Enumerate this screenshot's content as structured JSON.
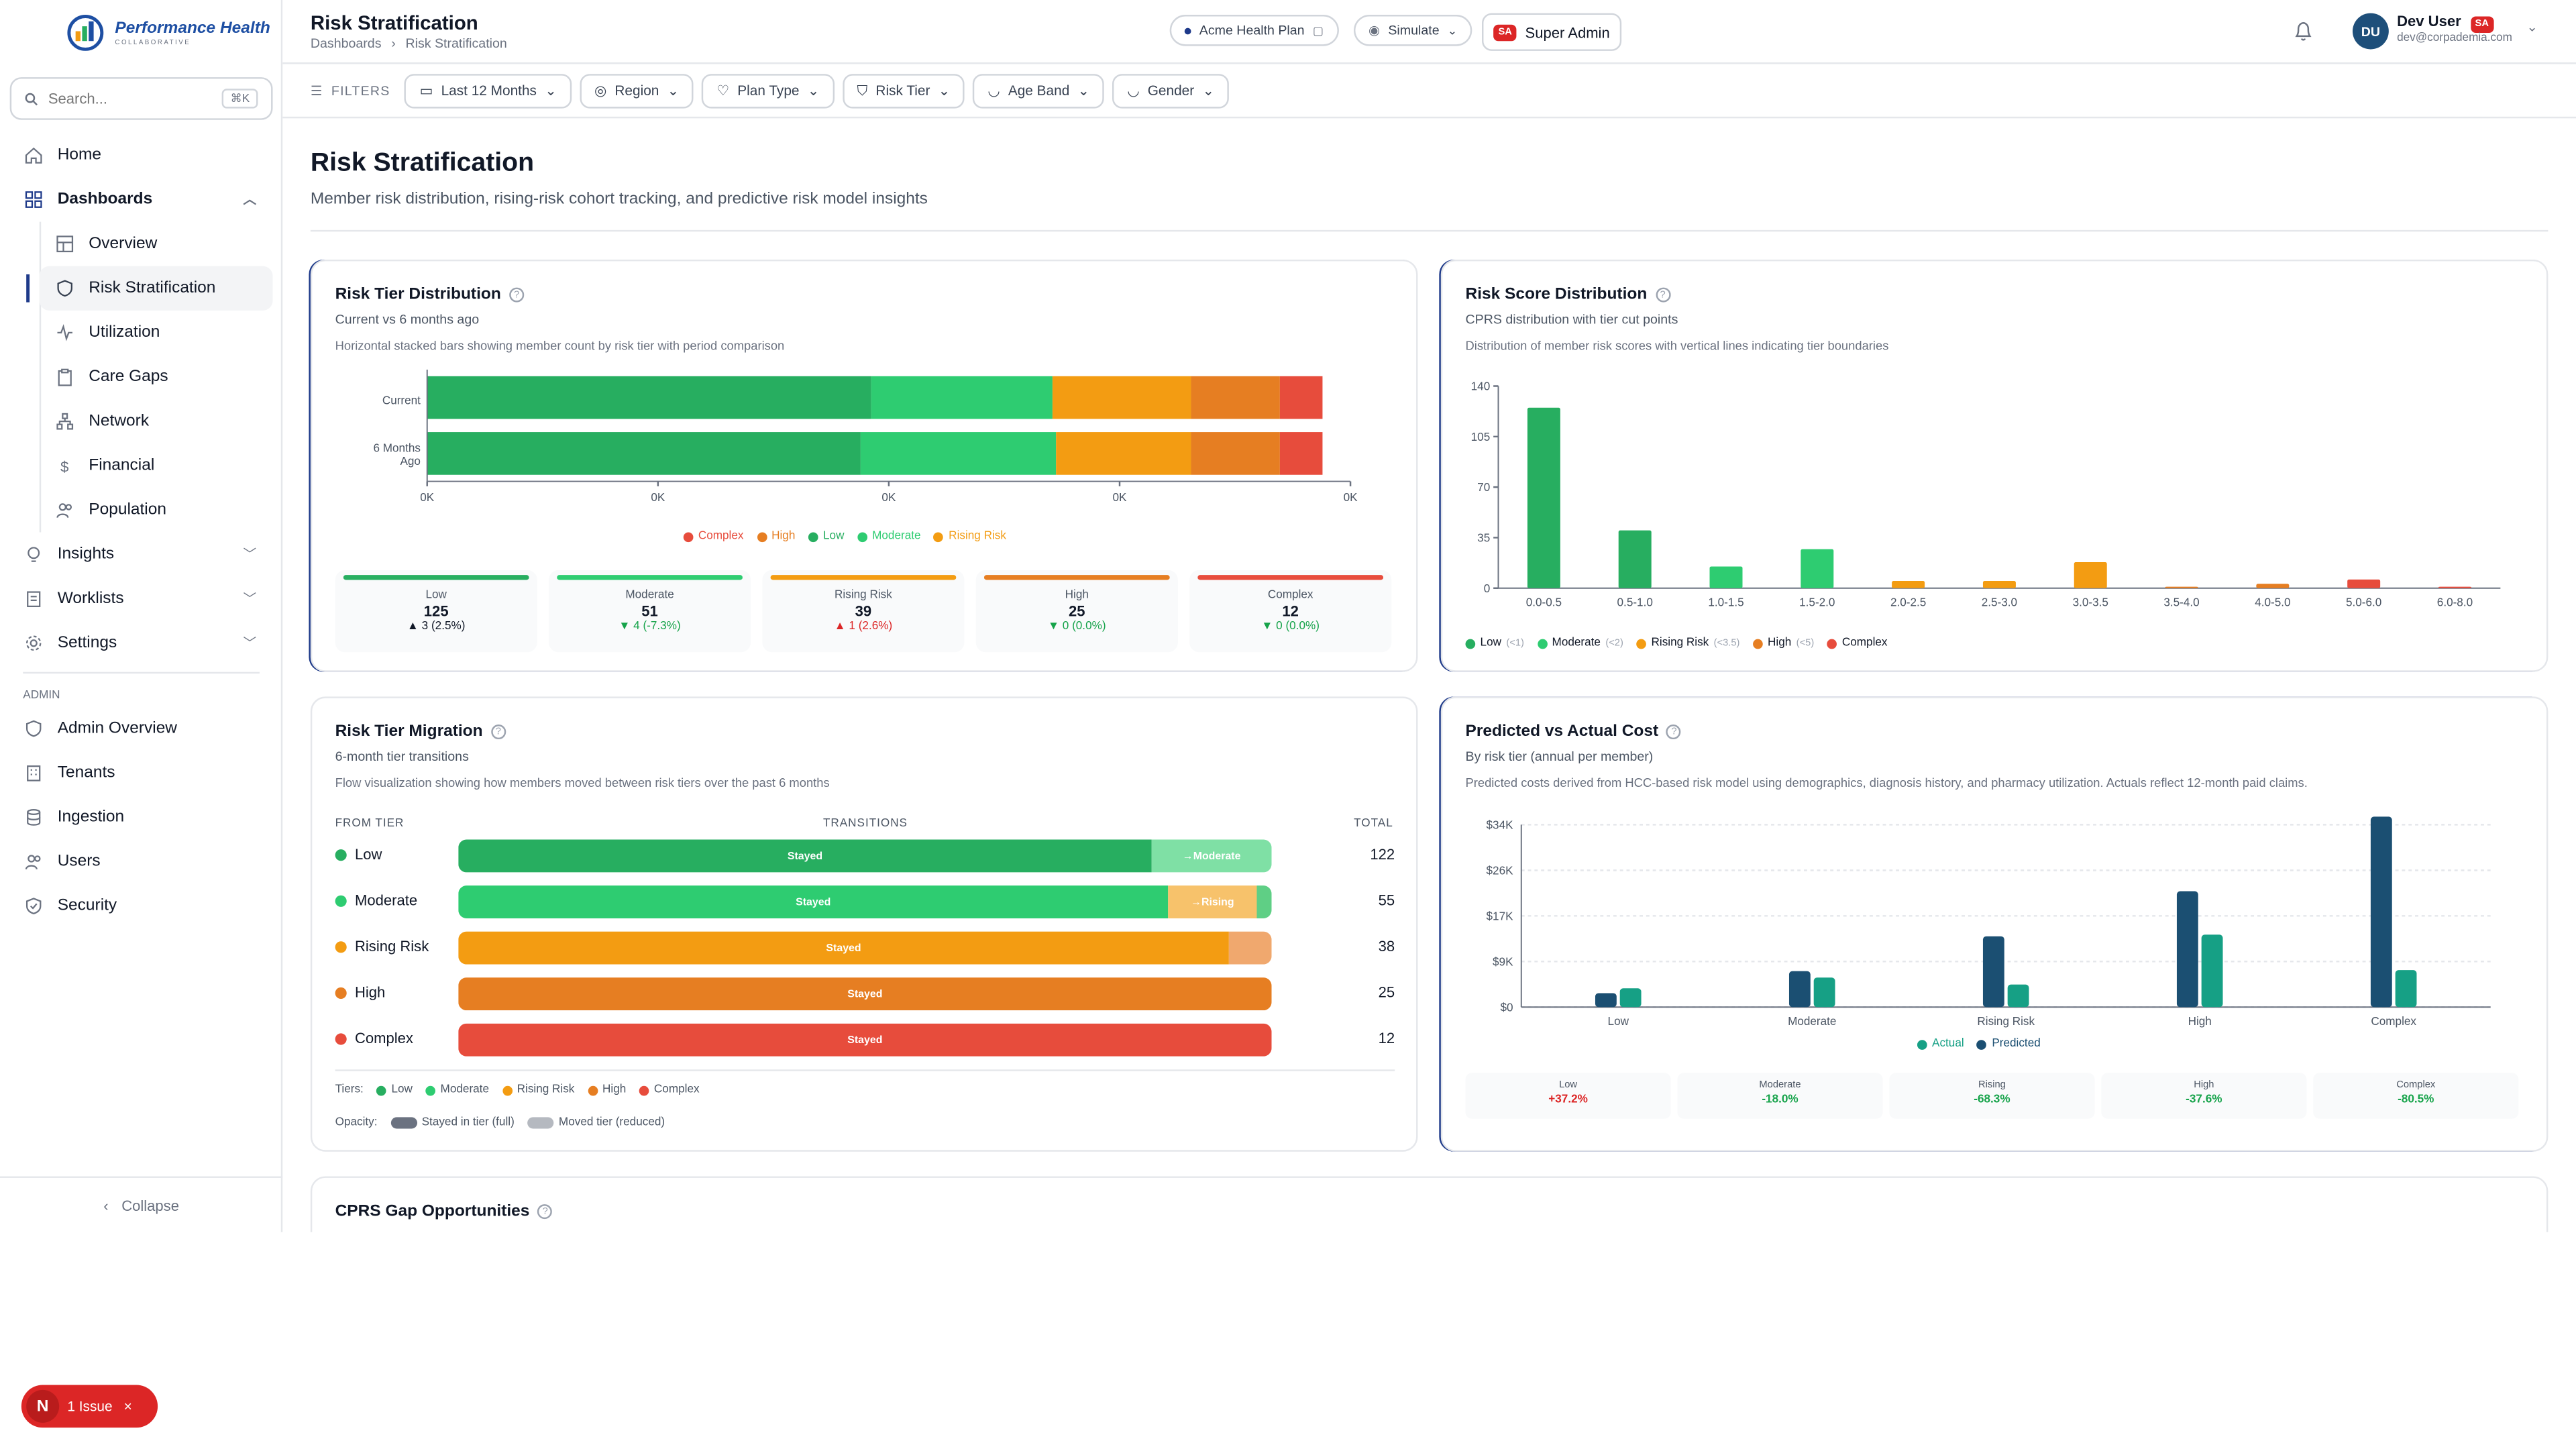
{
  "brand": {
    "name": "Performance Health",
    "sub": "COLLABORATIVE"
  },
  "search": {
    "placeholder": "Search...",
    "shortcut": "⌘K"
  },
  "nav": {
    "home": "Home",
    "dashboards": "Dashboards",
    "dash_items": [
      "Overview",
      "Risk Stratification",
      "Utilization",
      "Care Gaps",
      "Network",
      "Financial",
      "Population"
    ],
    "insights": "Insights",
    "worklists": "Worklists",
    "settings": "Settings",
    "admin_label": "ADMIN",
    "admin_items": [
      "Admin Overview",
      "Tenants",
      "Ingestion",
      "Users",
      "Security"
    ],
    "collapse": "Collapse"
  },
  "topbar": {
    "title": "Risk Stratification",
    "crumb_1": "Dashboards",
    "crumb_2": "Risk Stratification",
    "plan": "Acme Health Plan",
    "simulate": "Simulate",
    "role_badge": "SA",
    "role": "Super Admin",
    "avatar": "DU",
    "user_name": "Dev User",
    "user_badge": "SA",
    "user_email": "dev@corpademia.com"
  },
  "filters": {
    "label": "FILTERS",
    "items": [
      "Last 12 Months",
      "Region",
      "Plan Type",
      "Risk Tier",
      "Age Band",
      "Gender"
    ]
  },
  "page": {
    "title": "Risk Stratification",
    "subtitle": "Member risk distribution, rising-risk cohort tracking, and predictive risk model insights"
  },
  "colors": {
    "low": "#27ae60",
    "moderate": "#2ecc71",
    "rising": "#f39c12",
    "high": "#e67e22",
    "complex": "#e74c3c",
    "actual": "#1b4f72",
    "predicted": "#16a085"
  },
  "tier_dist": {
    "title": "Risk Tier Distribution",
    "subtitle": "Current vs 6 months ago",
    "desc": "Horizontal stacked bars showing member count by risk tier with period comparison",
    "legend": [
      "Complex",
      "High",
      "Low",
      "Moderate",
      "Rising Risk"
    ],
    "stats": [
      {
        "label": "Low",
        "value": "125",
        "change": "▲ 3 (2.5%)"
      },
      {
        "label": "Moderate",
        "value": "51",
        "change": "▼ 4 (-7.3%)"
      },
      {
        "label": "Rising Risk",
        "value": "39",
        "change": "▲ 1 (2.6%)"
      },
      {
        "label": "High",
        "value": "25",
        "change": "▼ 0 (0.0%)"
      },
      {
        "label": "Complex",
        "value": "12",
        "change": "▼ 0 (0.0%)"
      }
    ]
  },
  "score_dist": {
    "title": "Risk Score Distribution",
    "subtitle": "CPRS distribution with tier cut points",
    "desc": "Distribution of member risk scores with vertical lines indicating tier boundaries",
    "legend": [
      {
        "name": "Low",
        "note": "(<1)"
      },
      {
        "name": "Moderate",
        "note": "(<2)"
      },
      {
        "name": "Rising Risk",
        "note": "(<3.5)"
      },
      {
        "name": "High",
        "note": "(<5)"
      },
      {
        "name": "Complex",
        "note": ""
      }
    ]
  },
  "migration": {
    "title": "Risk Tier Migration",
    "subtitle": "6-month tier transitions",
    "desc": "Flow visualization showing how members moved between risk tiers over the past 6 months",
    "col_from": "FROM TIER",
    "col_trans": "TRANSITIONS",
    "col_total": "TOTAL",
    "rows": [
      {
        "name": "Low",
        "total": "122",
        "stay_label": "Stayed",
        "move_label": "→Moderate"
      },
      {
        "name": "Moderate",
        "total": "55",
        "stay_label": "Stayed",
        "move_label": "→Rising"
      },
      {
        "name": "Rising Risk",
        "total": "38",
        "stay_label": "Stayed",
        "move_label": ""
      },
      {
        "name": "High",
        "total": "25",
        "stay_label": "Stayed",
        "move_label": ""
      },
      {
        "name": "Complex",
        "total": "12",
        "stay_label": "Stayed",
        "move_label": ""
      }
    ],
    "tiers_label": "Tiers:",
    "opacity_label": "Opacity:",
    "stayed_full": "Stayed in tier (full)",
    "moved_reduced": "Moved tier (reduced)"
  },
  "pva": {
    "title": "Predicted vs Actual Cost",
    "subtitle": "By risk tier (annual per member)",
    "desc": "Predicted costs derived from HCC-based risk model using demographics, diagnosis history, and pharmacy utilization. Actuals reflect 12-month paid claims.",
    "legend": [
      "Actual",
      "Predicted"
    ],
    "variances": [
      {
        "label": "Low",
        "value": "+37.2%"
      },
      {
        "label": "Moderate",
        "value": "-18.0%"
      },
      {
        "label": "Rising",
        "value": "-68.3%"
      },
      {
        "label": "High",
        "value": "-37.6%"
      },
      {
        "label": "Complex",
        "value": "-80.5%"
      }
    ]
  },
  "gap": {
    "title": "CPRS Gap Opportunities"
  },
  "issue": {
    "badge": "N",
    "label": "1 Issue"
  },
  "chart_data": [
    {
      "type": "bar",
      "orientation": "horizontal-stacked",
      "categories": [
        "Current",
        "6 Months Ago"
      ],
      "series": [
        {
          "name": "Low",
          "values": [
            125,
            122
          ]
        },
        {
          "name": "Moderate",
          "values": [
            51,
            55
          ]
        },
        {
          "name": "Rising Risk",
          "values": [
            39,
            38
          ]
        },
        {
          "name": "High",
          "values": [
            25,
            25
          ]
        },
        {
          "name": "Complex",
          "values": [
            12,
            12
          ]
        }
      ],
      "xticks": [
        "0K",
        "0K",
        "0K",
        "0K",
        "0K"
      ]
    },
    {
      "type": "bar",
      "categories": [
        "0.0-0.5",
        "0.5-1.0",
        "1.0-1.5",
        "1.5-2.0",
        "2.0-2.5",
        "2.5-3.0",
        "3.0-3.5",
        "3.5-4.0",
        "4.0-5.0",
        "5.0-6.0",
        "6.0-8.0"
      ],
      "values": [
        125,
        40,
        15,
        27,
        5,
        5,
        18,
        1,
        3,
        6,
        1
      ],
      "tiers": [
        "low",
        "low",
        "moderate",
        "moderate",
        "rising",
        "rising",
        "rising",
        "high",
        "high",
        "complex",
        "complex"
      ],
      "ylim": [
        0,
        140
      ],
      "yticks": [
        0,
        35,
        70,
        105,
        140
      ]
    },
    {
      "type": "bar",
      "categories": [
        "Low",
        "Moderate",
        "Rising Risk",
        "High",
        "Complex"
      ],
      "series": [
        {
          "name": "Actual",
          "values": [
            2600,
            6700,
            13200,
            21600,
            35500
          ]
        },
        {
          "name": "Predicted",
          "values": [
            3500,
            5500,
            4200,
            13500,
            6900
          ]
        }
      ],
      "ylim": [
        0,
        34000
      ],
      "yticks": [
        "$0",
        "$9K",
        "$17K",
        "$26K",
        "$34K"
      ]
    }
  ]
}
